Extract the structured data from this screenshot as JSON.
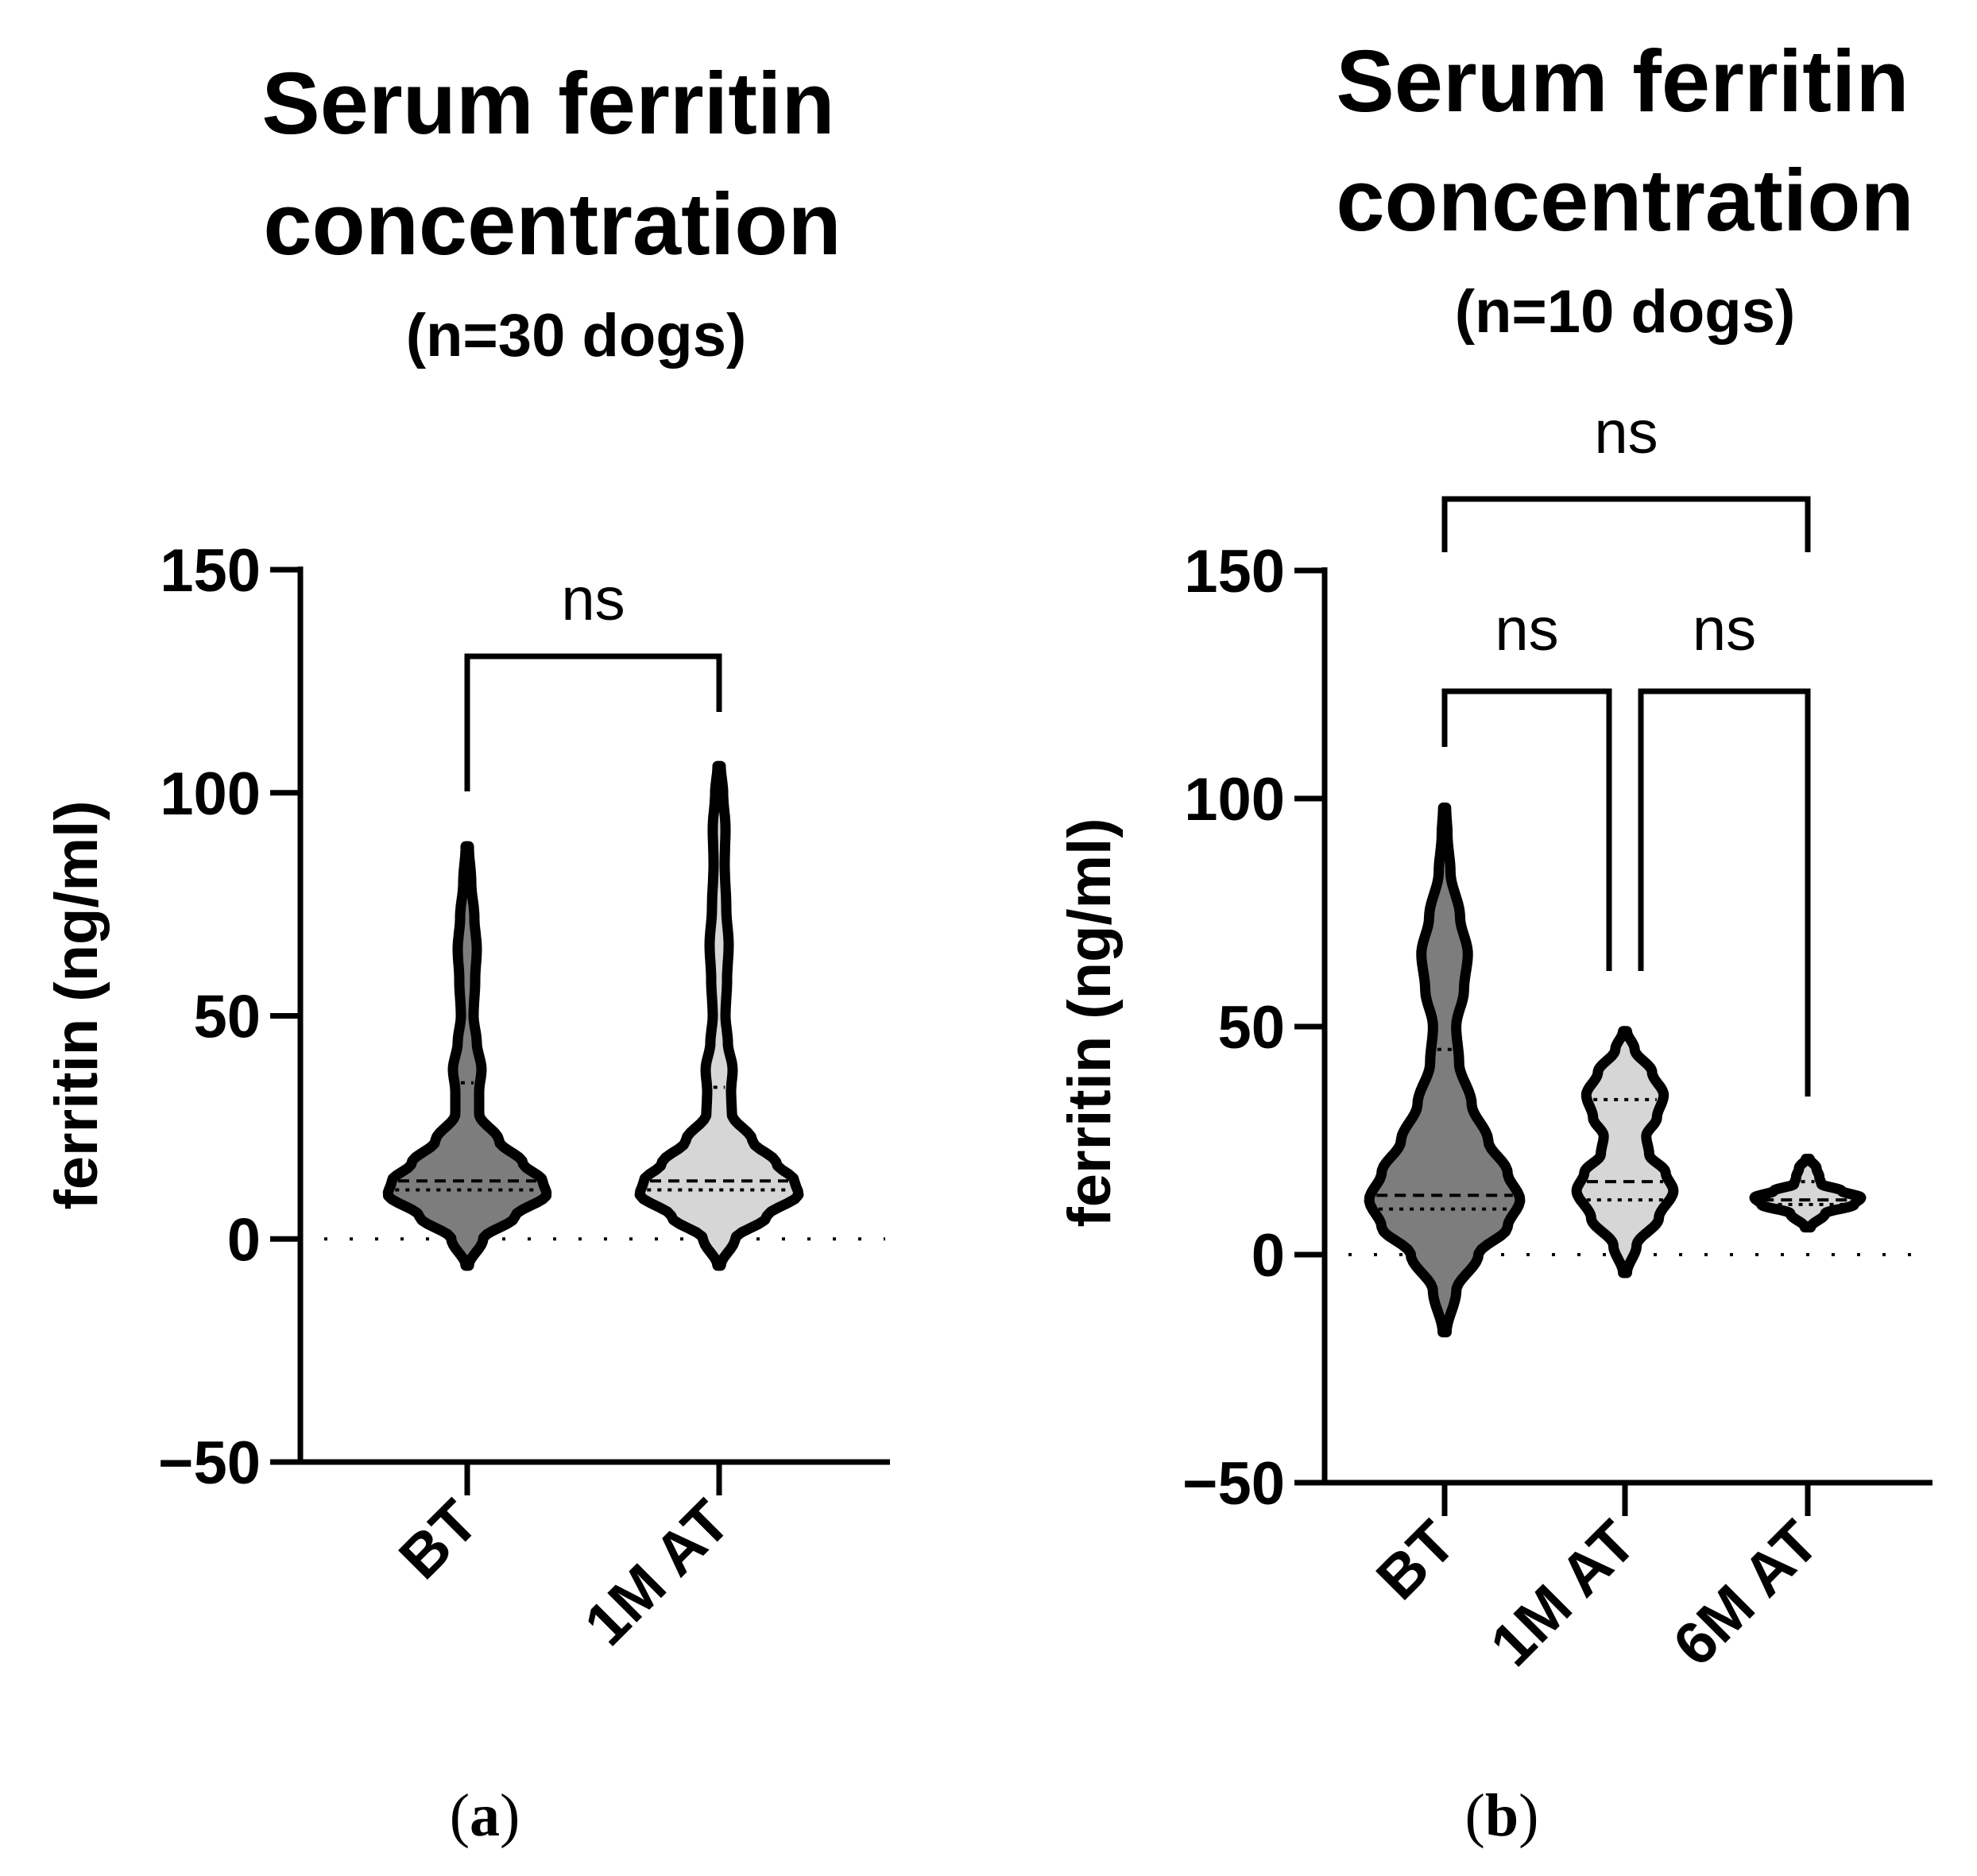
{
  "figure": {
    "panels": [
      {
        "title_lines": [
          "Serum ferritin",
          "concentration",
          "(n=30 dogs)"
        ],
        "panel_label": [
          "(",
          "a",
          ")"
        ]
      },
      {
        "title_lines": [
          "Serum ferritin",
          "concentration",
          "(n=10 dogs)"
        ],
        "panel_label": [
          "(",
          "b",
          ")"
        ]
      }
    ]
  },
  "colors": {
    "dark_violin": "#7d7d7d",
    "light_violin": "#d6d6d6",
    "stroke": "#000000"
  },
  "chart_data": [
    {
      "type": "violin",
      "title": "Serum ferritin concentration (n=30 dogs)",
      "ylabel": "ferritin (ng/ml)",
      "ylim": [
        -50,
        150
      ],
      "yticks": [
        -50,
        0,
        50,
        100,
        150
      ],
      "ytick_labels": [
        "−50",
        "0",
        "50",
        "100",
        "150"
      ],
      "reference_line_y": 0,
      "categories": [
        "BT",
        "1M AT"
      ],
      "series": [
        {
          "name": "BT",
          "fill": "dark",
          "min": -6,
          "max": 88,
          "median": 13,
          "q1": 11,
          "q3": 35,
          "density_profile": [
            [
              -6,
              0.02
            ],
            [
              0,
              0.2
            ],
            [
              5,
              0.6
            ],
            [
              10,
              1.0
            ],
            [
              13,
              0.95
            ],
            [
              17,
              0.7
            ],
            [
              22,
              0.4
            ],
            [
              28,
              0.15
            ],
            [
              33,
              0.15
            ],
            [
              38,
              0.18
            ],
            [
              44,
              0.12
            ],
            [
              50,
              0.08
            ],
            [
              58,
              0.1
            ],
            [
              65,
              0.12
            ],
            [
              72,
              0.09
            ],
            [
              80,
              0.05
            ],
            [
              88,
              0.02
            ]
          ]
        },
        {
          "name": "1M AT",
          "fill": "light",
          "min": -6,
          "max": 106,
          "median": 13,
          "q1": 11,
          "q3": 34,
          "density_profile": [
            [
              -6,
              0.02
            ],
            [
              0,
              0.2
            ],
            [
              5,
              0.6
            ],
            [
              10,
              1.0
            ],
            [
              13,
              0.95
            ],
            [
              17,
              0.72
            ],
            [
              22,
              0.42
            ],
            [
              28,
              0.16
            ],
            [
              33,
              0.15
            ],
            [
              38,
              0.17
            ],
            [
              44,
              0.11
            ],
            [
              50,
              0.08
            ],
            [
              58,
              0.1
            ],
            [
              66,
              0.12
            ],
            [
              74,
              0.09
            ],
            [
              84,
              0.07
            ],
            [
              92,
              0.08
            ],
            [
              100,
              0.05
            ],
            [
              106,
              0.02
            ]
          ]
        }
      ],
      "comparisons": [
        {
          "from": "BT",
          "to": "1M AT",
          "label": "ns"
        }
      ]
    },
    {
      "type": "violin",
      "title": "Serum ferritin concentration (n=10 dogs)",
      "ylabel": "ferritin (ng/ml)",
      "ylim": [
        -50,
        150
      ],
      "yticks": [
        -50,
        0,
        50,
        100,
        150
      ],
      "ytick_labels": [
        "−50",
        "0",
        "50",
        "100",
        "150"
      ],
      "reference_line_y": 0,
      "categories": [
        "BT",
        "1M AT",
        "6M AT"
      ],
      "series": [
        {
          "name": "BT",
          "fill": "dark",
          "min": -17,
          "max": 98,
          "median": 13,
          "q1": 10,
          "q3": 45,
          "density_profile": [
            [
              -17,
              0.02
            ],
            [
              -8,
              0.12
            ],
            [
              0,
              0.35
            ],
            [
              6,
              0.65
            ],
            [
              12,
              0.78
            ],
            [
              18,
              0.65
            ],
            [
              25,
              0.45
            ],
            [
              33,
              0.28
            ],
            [
              42,
              0.15
            ],
            [
              50,
              0.12
            ],
            [
              58,
              0.2
            ],
            [
              66,
              0.24
            ],
            [
              74,
              0.16
            ],
            [
              84,
              0.06
            ],
            [
              92,
              0.03
            ],
            [
              98,
              0.015
            ]
          ]
        },
        {
          "name": "1M AT",
          "fill": "light",
          "min": -4,
          "max": 49,
          "median": 16,
          "q1": 12,
          "q3": 34,
          "density_profile": [
            [
              -4,
              0.02
            ],
            [
              2,
              0.12
            ],
            [
              8,
              0.35
            ],
            [
              14,
              0.5
            ],
            [
              18,
              0.42
            ],
            [
              22,
              0.25
            ],
            [
              26,
              0.22
            ],
            [
              30,
              0.33
            ],
            [
              35,
              0.4
            ],
            [
              40,
              0.28
            ],
            [
              45,
              0.1
            ],
            [
              49,
              0.02
            ]
          ]
        },
        {
          "name": "6M AT",
          "fill": "light",
          "min": 6,
          "max": 21,
          "median": 12,
          "q1": 11,
          "q3": 16,
          "density_profile": [
            [
              6,
              0.03
            ],
            [
              9,
              0.18
            ],
            [
              11,
              0.48
            ],
            [
              12.5,
              0.55
            ],
            [
              14,
              0.35
            ],
            [
              15.5,
              0.14
            ],
            [
              17,
              0.12
            ],
            [
              19,
              0.09
            ],
            [
              21,
              0.02
            ]
          ]
        }
      ],
      "comparisons": [
        {
          "from": "BT",
          "to": "1M AT",
          "label": "ns"
        },
        {
          "from": "1M AT",
          "to": "6M AT",
          "label": "ns"
        },
        {
          "from": "BT",
          "to": "6M AT",
          "label": "ns"
        }
      ]
    }
  ]
}
